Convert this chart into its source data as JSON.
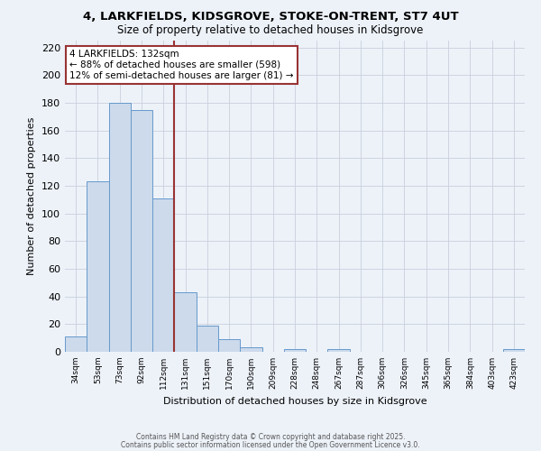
{
  "title_line1": "4, LARKFIELDS, KIDSGROVE, STOKE-ON-TRENT, ST7 4UT",
  "title_line2": "Size of property relative to detached houses in Kidsgrove",
  "xlabel": "Distribution of detached houses by size in Kidsgrove",
  "ylabel": "Number of detached properties",
  "bin_labels": [
    "34sqm",
    "53sqm",
    "73sqm",
    "92sqm",
    "112sqm",
    "131sqm",
    "151sqm",
    "170sqm",
    "190sqm",
    "209sqm",
    "228sqm",
    "248sqm",
    "267sqm",
    "287sqm",
    "306sqm",
    "326sqm",
    "345sqm",
    "365sqm",
    "384sqm",
    "403sqm",
    "423sqm"
  ],
  "bar_values": [
    11,
    123,
    180,
    175,
    111,
    43,
    19,
    9,
    3,
    0,
    2,
    0,
    2,
    0,
    0,
    0,
    0,
    0,
    0,
    0,
    2
  ],
  "bar_color": "#ccdaeb",
  "bar_edge_color": "#6699cc",
  "vline_color": "#993333",
  "annotation_title": "4 LARKFIELDS: 132sqm",
  "annotation_line2": "← 88% of detached houses are smaller (598)",
  "annotation_line3": "12% of semi-detached houses are larger (81) →",
  "annotation_box_color": "#ffffff",
  "annotation_box_edge": "#993333",
  "ylim": [
    0,
    225
  ],
  "yticks": [
    0,
    20,
    40,
    60,
    80,
    100,
    120,
    140,
    160,
    180,
    200,
    220
  ],
  "footer_line1": "Contains HM Land Registry data © Crown copyright and database right 2025.",
  "footer_line2": "Contains public sector information licensed under the Open Government Licence v3.0.",
  "bg_color": "#edf2f9",
  "plot_bg_color": "#edf2f9",
  "grid_color": "#c8d0dc"
}
